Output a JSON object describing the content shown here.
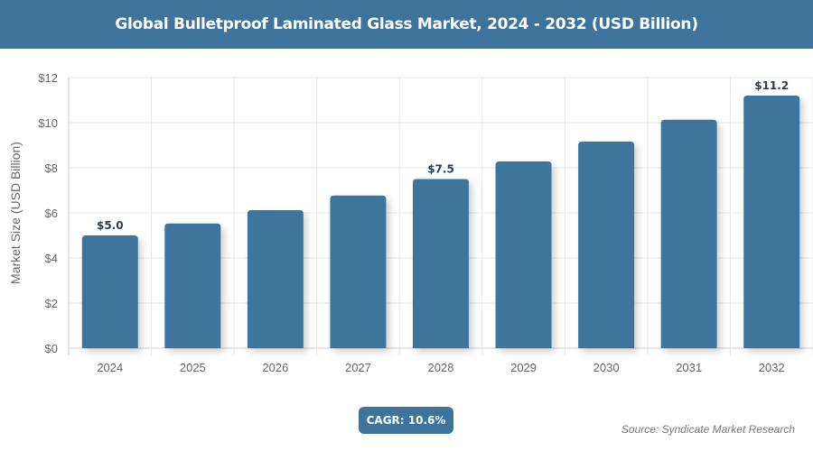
{
  "header": {
    "title": "Global Bulletproof Laminated Glass Market, 2024 - 2032 (USD Billion)"
  },
  "chart_data": {
    "type": "bar",
    "title": "Global Bulletproof Laminated Glass Market, 2024 - 2032 (USD Billion)",
    "categories": [
      "2024",
      "2025",
      "2026",
      "2027",
      "2028",
      "2029",
      "2030",
      "2031",
      "2032"
    ],
    "values": [
      5.0,
      5.53,
      6.12,
      6.77,
      7.5,
      8.28,
      9.16,
      10.13,
      11.2
    ],
    "data_labels": [
      {
        "category": "2024",
        "text": "$5.0"
      },
      {
        "category": "2028",
        "text": "$7.5"
      },
      {
        "category": "2032",
        "text": "$11.2"
      }
    ],
    "xlabel": "",
    "ylabel": "Market Size (USD Billion)",
    "ylim": [
      0,
      12
    ],
    "yticks": [
      "$0",
      "$2",
      "$4",
      "$6",
      "$8",
      "$10",
      "$12"
    ],
    "grid": true,
    "bar_color": "#3e749c"
  },
  "footer": {
    "cagr": "CAGR: 10.6%",
    "source": "Source: Syndicate Market Research"
  }
}
